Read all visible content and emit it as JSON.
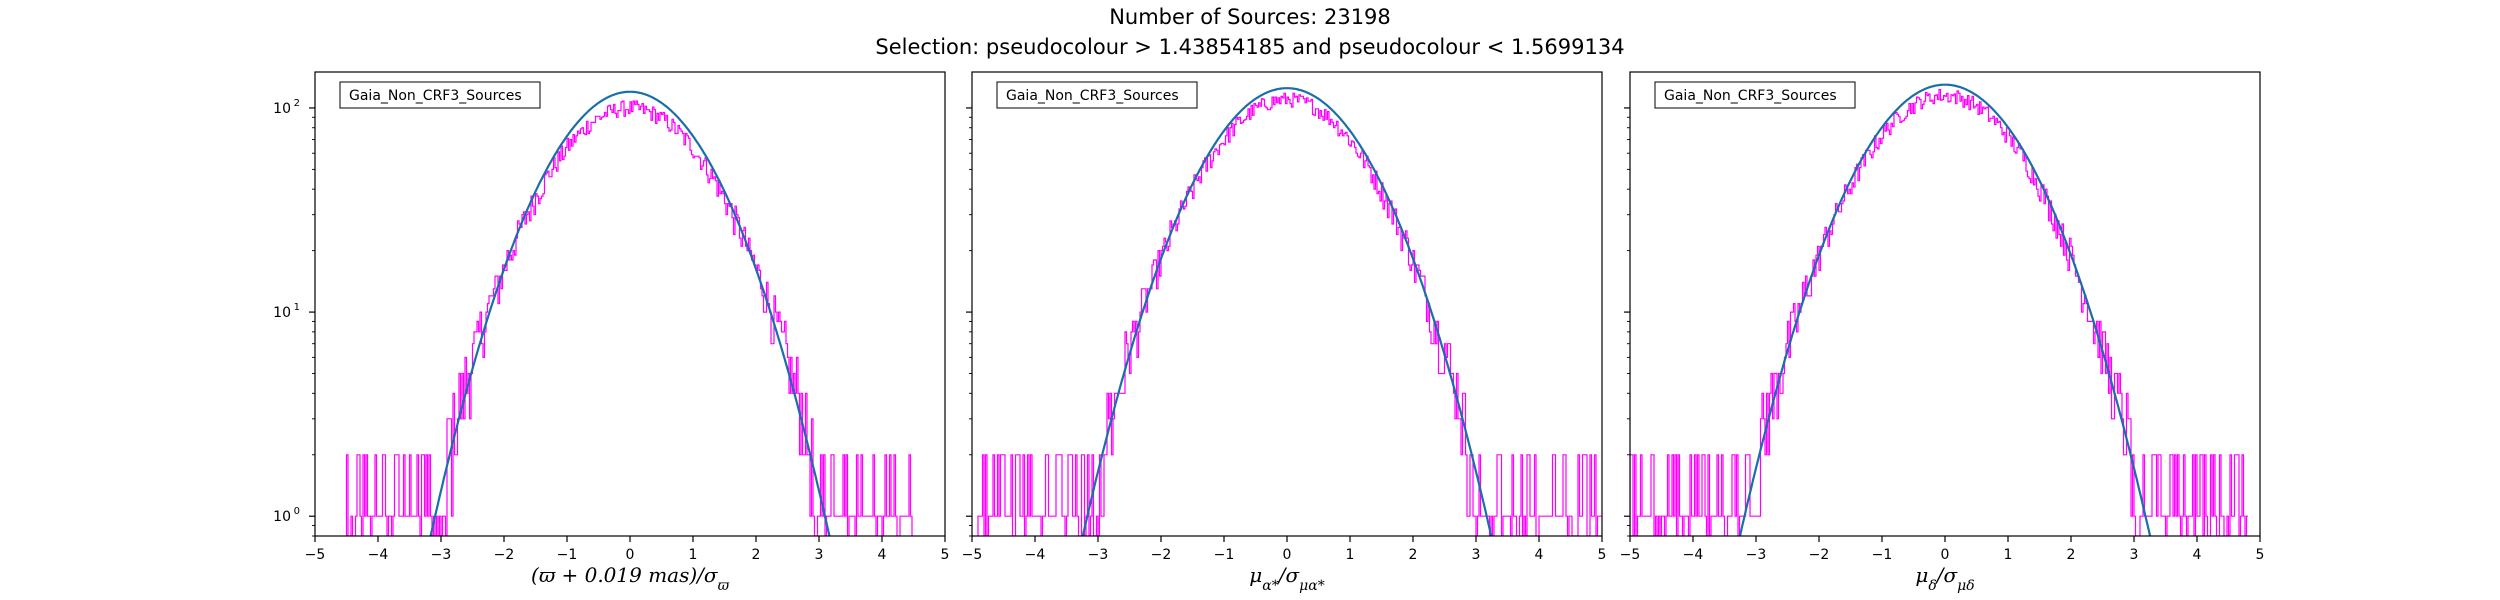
{
  "figure": {
    "title_line1": "Number of Sources: 23198",
    "title_line2": "Selection: pseudocolour > 1.43854185 and pseudocolour < 1.5699134"
  },
  "colors": {
    "histogram": "#ff00ff",
    "fit": "#1a6fa8",
    "axes": "#000000"
  },
  "chart_data": [
    {
      "type": "line",
      "title": "",
      "legend": "Gaia_Non_CRF3_Sources",
      "legend_placement": "top-left",
      "xlabel": "(ϖ + 0.019 mas)/σ_ϖ",
      "xlabel_parts": {
        "main": "(ϖ + 0.019 mas)/σ",
        "sub": "ϖ"
      },
      "xlim": [
        -5,
        5
      ],
      "ylim": [
        0.8,
        150
      ],
      "yscale": "log",
      "xticks": [
        "−5",
        "−4",
        "−3",
        "−2",
        "−1",
        "0",
        "1",
        "2",
        "3",
        "4",
        "5"
      ],
      "yticks": [
        {
          "value": 1,
          "label": "10",
          "exp": "0"
        },
        {
          "value": 10,
          "label": "10",
          "exp": "1"
        },
        {
          "value": 100,
          "label": "10",
          "exp": "2"
        }
      ],
      "series": [
        {
          "kind": "histogram",
          "x": [
            -4.5,
            -3.3,
            3.3,
            4.5
          ],
          "y": [
            1,
            1,
            1,
            1
          ],
          "peak": 100,
          "sigma": 1.05
        },
        {
          "kind": "gaussian_fit",
          "amplitude": 120,
          "mean": 0,
          "sigma": 1.0
        }
      ],
      "grid": false
    },
    {
      "type": "line",
      "title": "",
      "legend": "Gaia_Non_CRF3_Sources",
      "legend_placement": "top-left",
      "xlabel": "μα*/σ_μα*",
      "xlabel_parts": {
        "main": "μ",
        "sub1": "α*",
        "mid": "/σ",
        "sub2": "μα*"
      },
      "xlim": [
        -5,
        5
      ],
      "ylim": [
        0.8,
        150
      ],
      "yscale": "log",
      "xticks": [
        "−5",
        "−4",
        "−3",
        "−2",
        "−1",
        "0",
        "1",
        "2",
        "3",
        "4",
        "5"
      ],
      "series": [
        {
          "kind": "histogram",
          "x": [
            -4.9,
            -3.3,
            3.3,
            5.0
          ],
          "y": [
            1,
            1,
            1,
            1
          ],
          "peak": 110,
          "sigma": 1.05
        },
        {
          "kind": "gaussian_fit",
          "amplitude": 125,
          "mean": 0,
          "sigma": 1.02
        }
      ],
      "grid": false
    },
    {
      "type": "line",
      "title": "",
      "legend": "Gaia_Non_CRF3_Sources",
      "legend_placement": "top-left",
      "xlabel": "μδ/σ_μδ",
      "xlabel_parts": {
        "main": "μ",
        "sub1": "δ",
        "mid": "/σ",
        "sub2": "μδ"
      },
      "xlim": [
        -5,
        5
      ],
      "ylim": [
        0.8,
        150
      ],
      "yscale": "log",
      "xticks": [
        "−5",
        "−4",
        "−3",
        "−2",
        "−1",
        "0",
        "1",
        "2",
        "3",
        "4",
        "5"
      ],
      "series": [
        {
          "kind": "histogram",
          "x": [
            -5.0,
            -3.4,
            3.4,
            4.8
          ],
          "y": [
            1,
            1,
            1,
            1
          ],
          "peak": 115,
          "sigma": 1.05
        },
        {
          "kind": "gaussian_fit",
          "amplitude": 130,
          "mean": 0,
          "sigma": 1.02
        }
      ],
      "grid": false
    }
  ]
}
